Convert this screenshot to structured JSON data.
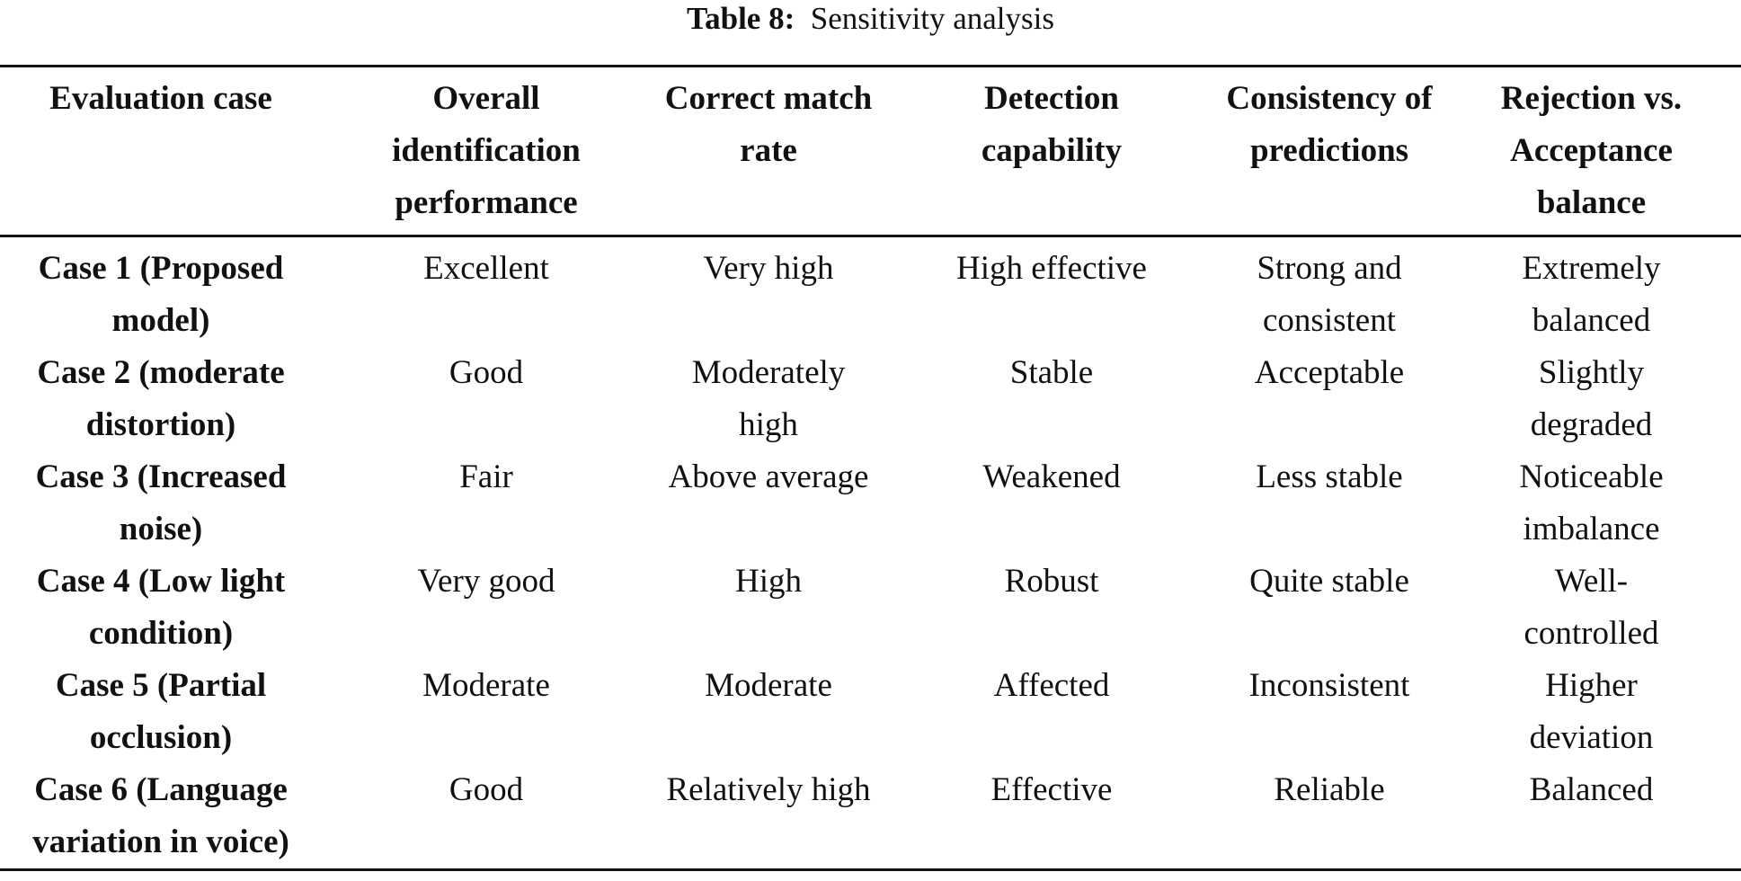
{
  "caption": {
    "label": "Table 8:",
    "title": "Sensitivity analysis"
  },
  "table": {
    "headers": [
      [
        "Evaluation case"
      ],
      [
        "Overall",
        "identification",
        "performance"
      ],
      [
        "Correct match",
        "rate"
      ],
      [
        "Detection",
        "capability"
      ],
      [
        "Consistency of",
        "predictions"
      ],
      [
        "Rejection vs.",
        "Acceptance",
        "balance"
      ]
    ],
    "rows": [
      [
        [
          "Case 1 (Proposed",
          "model)"
        ],
        [
          "Excellent"
        ],
        [
          "Very high"
        ],
        [
          "High effective"
        ],
        [
          "Strong and",
          "consistent"
        ],
        [
          "Extremely",
          "balanced"
        ]
      ],
      [
        [
          "Case 2 (moderate",
          "distortion)"
        ],
        [
          "Good"
        ],
        [
          "Moderately",
          "high"
        ],
        [
          "Stable"
        ],
        [
          "Acceptable"
        ],
        [
          "Slightly",
          "degraded"
        ]
      ],
      [
        [
          "Case 3 (Increased",
          "noise)"
        ],
        [
          "Fair"
        ],
        [
          "Above average"
        ],
        [
          "Weakened"
        ],
        [
          "Less stable"
        ],
        [
          "Noticeable",
          "imbalance"
        ]
      ],
      [
        [
          "Case 4 (Low light",
          "condition)"
        ],
        [
          "Very good"
        ],
        [
          "High"
        ],
        [
          "Robust"
        ],
        [
          "Quite stable"
        ],
        [
          "Well-",
          "controlled"
        ]
      ],
      [
        [
          "Case 5 (Partial",
          "occlusion)"
        ],
        [
          "Moderate"
        ],
        [
          "Moderate"
        ],
        [
          "Affected"
        ],
        [
          "Inconsistent"
        ],
        [
          "Higher",
          "deviation"
        ]
      ],
      [
        [
          "Case 6 (Language",
          "variation in voice)"
        ],
        [
          "Good"
        ],
        [
          "Relatively high"
        ],
        [
          "Effective"
        ],
        [
          "Reliable"
        ],
        [
          "Balanced"
        ]
      ]
    ]
  }
}
